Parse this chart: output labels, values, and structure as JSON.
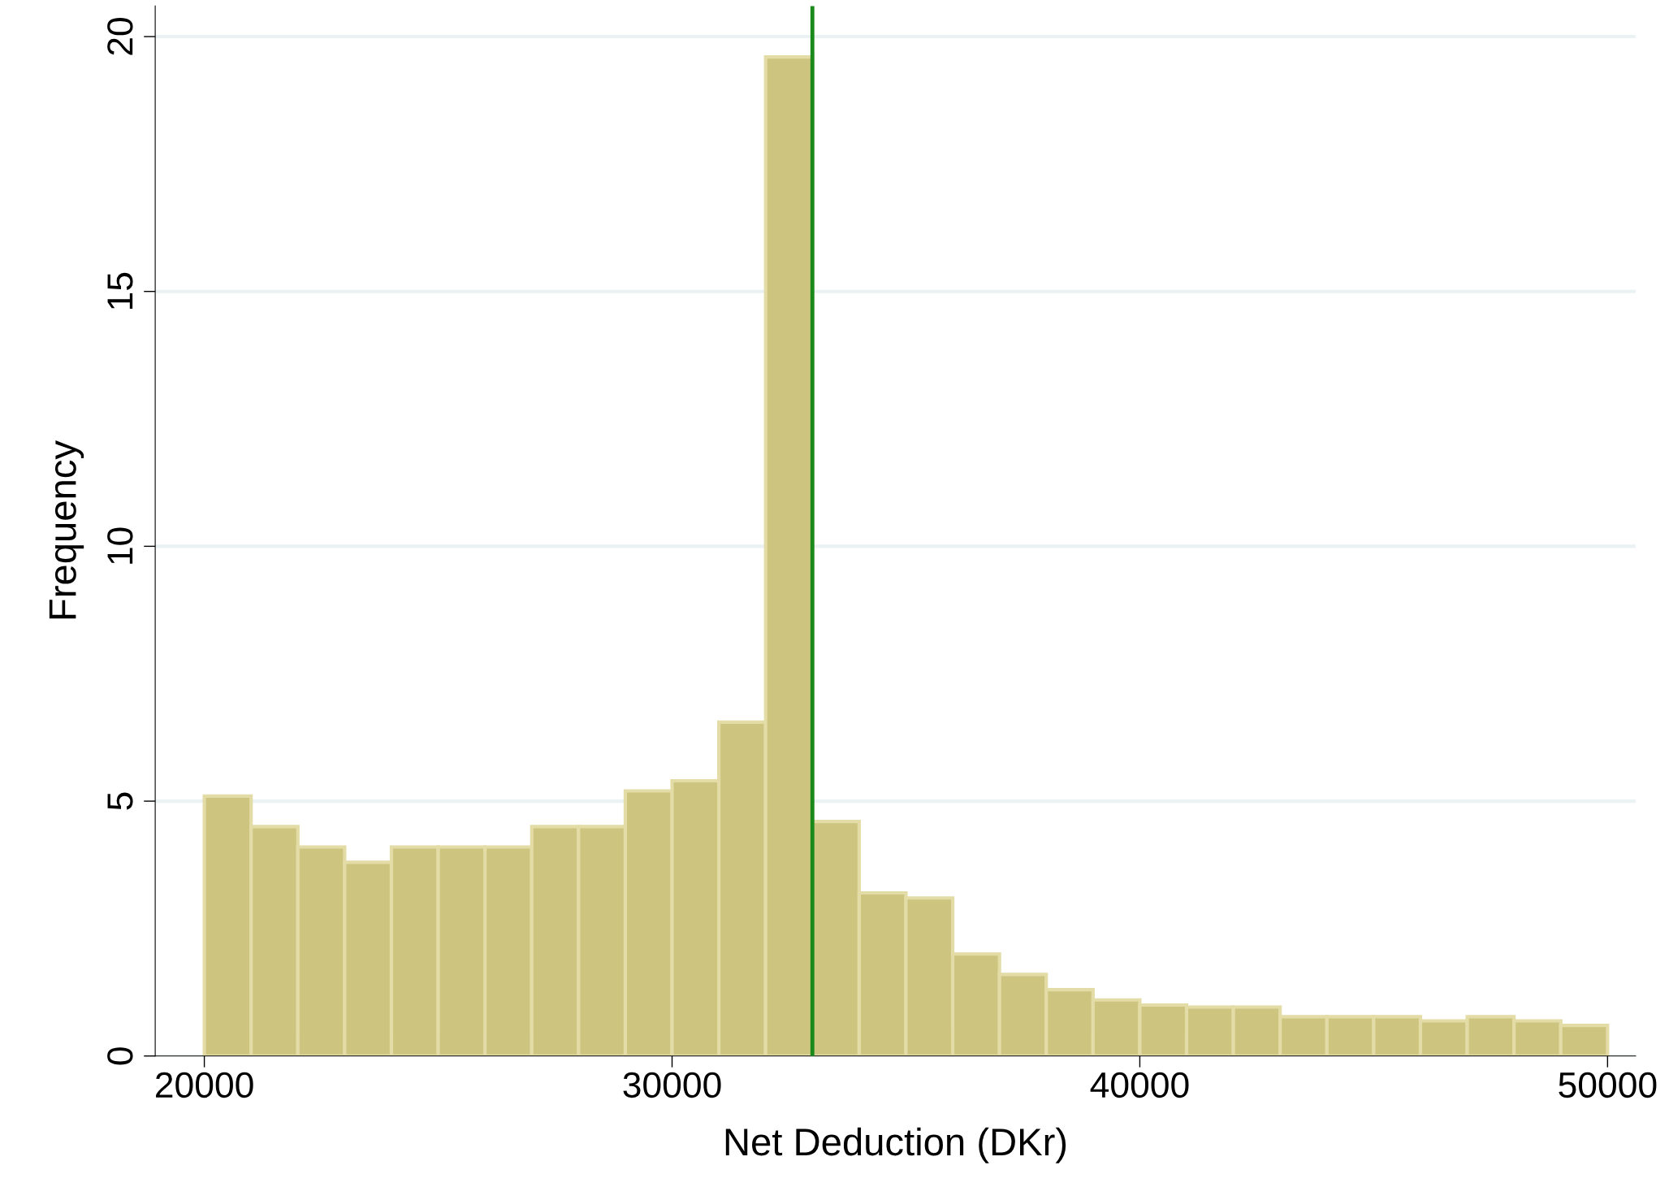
{
  "chart_data": {
    "type": "histogram",
    "xlabel": "Net Deduction (DKr)",
    "ylabel": "Frequency",
    "bins": [
      20000,
      21000,
      22000,
      23000,
      24000,
      25000,
      26000,
      27000,
      28000,
      29000,
      30000,
      31000,
      32000,
      33000,
      34000,
      35000,
      36000,
      37000,
      38000,
      39000,
      40000,
      41000,
      42000,
      43000,
      44000,
      45000,
      46000,
      47000,
      48000,
      49000,
      50000
    ],
    "values": [
      5.1,
      4.5,
      4.1,
      3.8,
      4.1,
      4.1,
      4.1,
      4.5,
      4.5,
      5.2,
      5.4,
      6.55,
      19.6,
      4.6,
      3.2,
      3.1,
      2.0,
      1.6,
      1.3,
      1.1,
      1.0,
      0.96,
      0.96,
      0.77,
      0.77,
      0.77,
      0.69,
      0.77,
      0.69,
      0.6
    ],
    "color": "#cdc47f",
    "xlim": [
      18950,
      50600
    ],
    "ylim": [
      0,
      20.6
    ],
    "xticks": [
      20000,
      30000,
      40000,
      50000
    ],
    "yticks": [
      0,
      5,
      10,
      15,
      20
    ],
    "grid": "y",
    "ref_lines": [
      {
        "axis": "x",
        "value": 33000,
        "color": "#1a8a1a"
      }
    ]
  }
}
